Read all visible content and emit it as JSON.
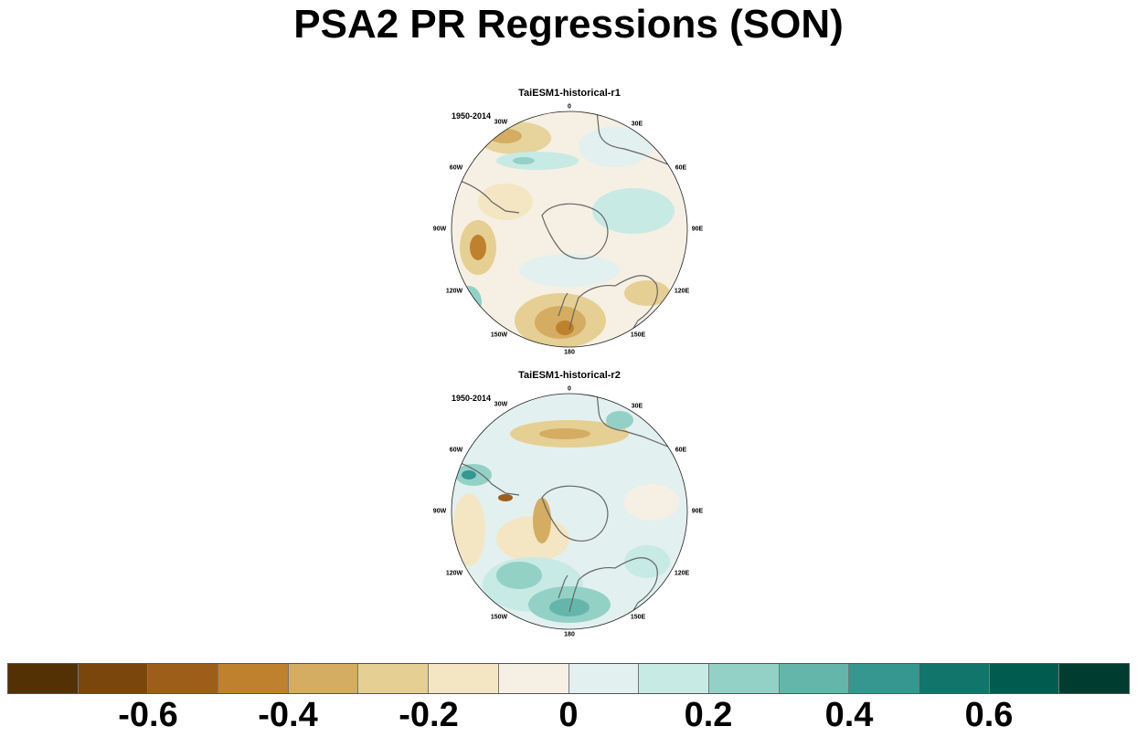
{
  "title": "PSA2 PR Regressions (SON)",
  "panels": [
    {
      "title": "TaiESM1-historical-r1",
      "period": "1950-2014",
      "lon_labels": [
        "0",
        "30E",
        "60E",
        "90E",
        "120E",
        "150E",
        "180",
        "150W",
        "120W",
        "90W",
        "60W",
        "30W"
      ]
    },
    {
      "title": "TaiESM1-historical-r2",
      "period": "1950-2014",
      "lon_labels": [
        "0",
        "30E",
        "60E",
        "90E",
        "120E",
        "150E",
        "180",
        "150W",
        "120W",
        "90W",
        "60W",
        "30W"
      ]
    }
  ],
  "colorbar": {
    "colors": [
      "#543005",
      "#7a460b",
      "#9c5e18",
      "#bf812d",
      "#d4ad62",
      "#e6cf93",
      "#f4e6c3",
      "#f5f0e3",
      "#e2f0ef",
      "#c7eae5",
      "#93d1c6",
      "#65b6aa",
      "#35978f",
      "#12756b",
      "#015b4f",
      "#003c30"
    ],
    "labels": [
      "-0.6",
      "-0.4",
      "-0.2",
      "0",
      "0.2",
      "0.4",
      "0.6"
    ]
  }
}
